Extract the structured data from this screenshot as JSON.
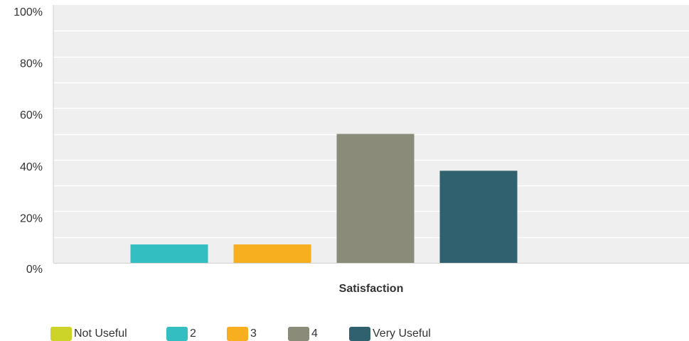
{
  "chart_data": {
    "type": "bar",
    "categories": [
      "Satisfaction"
    ],
    "series": [
      {
        "name": "Not Useful",
        "values": [
          0
        ],
        "color": "#cdd429"
      },
      {
        "name": "2",
        "values": [
          7.14
        ],
        "color": "#33bfc1"
      },
      {
        "name": "3",
        "values": [
          7.14
        ],
        "color": "#f7ae1f"
      },
      {
        "name": "4",
        "values": [
          50.0
        ],
        "color": "#8a8b79"
      },
      {
        "name": "Very Useful",
        "values": [
          35.71
        ],
        "color": "#2f616e"
      }
    ],
    "title": "",
    "xlabel": "Satisfaction",
    "ylabel": "",
    "ylim": [
      0,
      100
    ],
    "yticks": [
      "0%",
      "20%",
      "40%",
      "60%",
      "80%",
      "100%"
    ],
    "grid": true,
    "legend_position": "bottom-left"
  }
}
